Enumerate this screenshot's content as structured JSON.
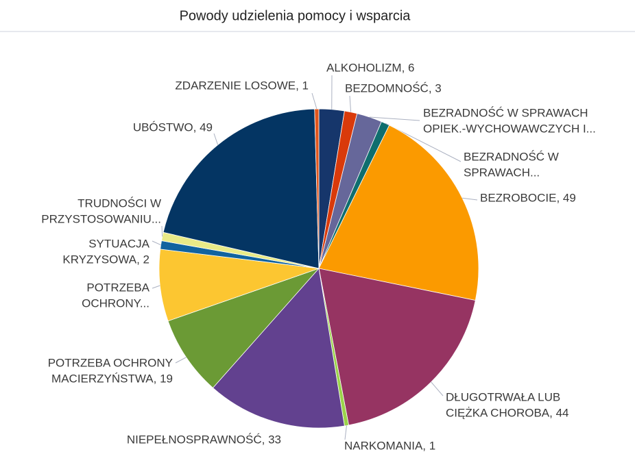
{
  "chart_data": {
    "type": "pie",
    "title": "Powody udzielenia pomocy i wsparcia",
    "labels": [
      [
        "ALKOHOLIZM, 6"
      ],
      [
        "BEZDOMNOŚĆ, 3"
      ],
      [
        "BEZRADNOŚĆ W SPRAWACH",
        "OPIEK.-WYCHOWAWCZYCH I..."
      ],
      [
        "BEZRADNOŚĆ W",
        "SPRAWACH..."
      ],
      [
        "BEZROBOCIE, 49"
      ],
      [
        "DŁUGOTRWAŁA LUB",
        "CIĘŻKA CHOROBA, 44"
      ],
      [
        "NARKOMANIA, 1"
      ],
      [
        "NIEPEŁNOSPRAWNOŚĆ, 33"
      ],
      [
        "POTRZEBA OCHRONY",
        "MACIERZYŃSTWA, 19"
      ],
      [
        "POTRZEBA",
        "OCHRONY..."
      ],
      [
        "SYTUACJA",
        "KRYZYSOWA, 2"
      ],
      [
        "TRUDNOŚCI W",
        "PRZYSTOSOWANIU..."
      ],
      [
        "UBÓSTWO, 49"
      ],
      [
        "ZDARZENIE LOSOWE, 1"
      ]
    ],
    "values": [
      6,
      3,
      6,
      2,
      49,
      44,
      1,
      33,
      19,
      17,
      2,
      2,
      49,
      1
    ],
    "colors": [
      "#16366b",
      "#d93a0b",
      "#66679a",
      "#0f6e6e",
      "#fb9a00",
      "#963462",
      "#9bd34a",
      "#62418f",
      "#6b9a35",
      "#fcc631",
      "#11639f",
      "#e9ea87",
      "#043563",
      "#e2561c"
    ]
  }
}
